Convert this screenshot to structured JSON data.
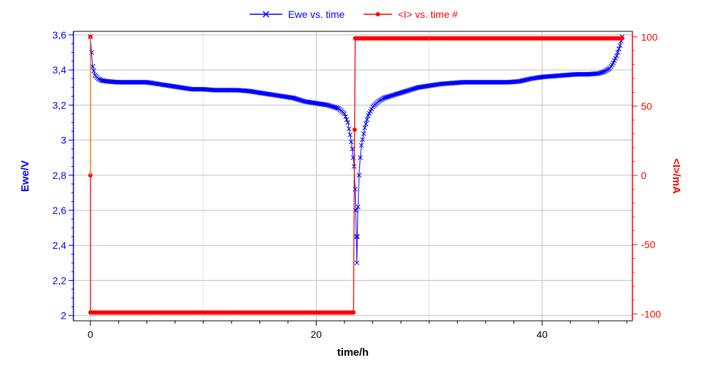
{
  "chart_data": {
    "type": "line",
    "title": "",
    "xlabel": "time/h",
    "ylabel_left": "Ewe/V",
    "ylabel_right": "<I>/mA",
    "xlim": [
      -1.5,
      48
    ],
    "ylim_left": [
      1.97,
      3.62
    ],
    "ylim_right": [
      -105,
      104
    ],
    "x_ticks": [
      0,
      20,
      40
    ],
    "y_left_ticks": [
      2,
      2.2,
      2.4,
      2.6,
      2.8,
      3,
      3.2,
      3.4,
      3.6
    ],
    "y_left_tick_labels": [
      "2",
      "2,2",
      "2,4",
      "2,6",
      "2,8",
      "3",
      "3,2",
      "3,4",
      "3,6"
    ],
    "y_right_ticks": [
      -100,
      -50,
      0,
      50,
      100
    ],
    "y_right_tick_labels": [
      "-100",
      "-50",
      "0",
      "50",
      "100"
    ],
    "grid": true,
    "legend_position": "top-center",
    "series": [
      {
        "name": "Ewe vs. time",
        "axis": "left",
        "color": "#0000ff",
        "marker": "x",
        "x": [
          0,
          0.1,
          0.2,
          0.4,
          0.7,
          1,
          1.5,
          2.5,
          4,
          5,
          6,
          7,
          8,
          9,
          10,
          11,
          12,
          13,
          14,
          15,
          16,
          17,
          18,
          19,
          20,
          21,
          21.5,
          22,
          22.5,
          22.8,
          23,
          23.2,
          23.35,
          23.45,
          23.5,
          23.55,
          23.6,
          23.65,
          23.7,
          23.8,
          23.9,
          24,
          24.3,
          24.6,
          25,
          25.5,
          26,
          27,
          28,
          29,
          30,
          31,
          32,
          33,
          34,
          35,
          36,
          37,
          38,
          39,
          40,
          41,
          42,
          43,
          44,
          45,
          45.5,
          46,
          46.3,
          46.6,
          46.9,
          47.1
        ],
        "y": [
          3.59,
          3.5,
          3.42,
          3.37,
          3.35,
          3.34,
          3.335,
          3.33,
          3.33,
          3.33,
          3.32,
          3.31,
          3.3,
          3.29,
          3.29,
          3.285,
          3.285,
          3.285,
          3.28,
          3.27,
          3.26,
          3.25,
          3.24,
          3.22,
          3.21,
          3.2,
          3.19,
          3.18,
          3.15,
          3.1,
          3.03,
          2.95,
          2.85,
          2.72,
          2.6,
          2.45,
          2.3,
          2.45,
          2.62,
          2.8,
          2.9,
          2.97,
          3.07,
          3.14,
          3.19,
          3.22,
          3.24,
          3.26,
          3.28,
          3.3,
          3.31,
          3.32,
          3.325,
          3.33,
          3.33,
          3.33,
          3.33,
          3.33,
          3.335,
          3.35,
          3.36,
          3.365,
          3.37,
          3.375,
          3.375,
          3.38,
          3.39,
          3.41,
          3.44,
          3.48,
          3.54,
          3.59
        ]
      },
      {
        "name": "<I> vs. time #",
        "axis": "right",
        "color": "#ff0000",
        "marker": "dot",
        "x": [
          0,
          0,
          0,
          3,
          6,
          9,
          12,
          15,
          18,
          21,
          23.3,
          23.4,
          23.45,
          23.6,
          24,
          27,
          30,
          33,
          36,
          39,
          42,
          45,
          47.1
        ],
        "y": [
          100,
          0,
          -99,
          -99,
          -99,
          -99,
          -99,
          -99,
          -99,
          -99,
          -99,
          33,
          99,
          99,
          99,
          99,
          99,
          99,
          99,
          99,
          99,
          99,
          99
        ]
      }
    ]
  }
}
